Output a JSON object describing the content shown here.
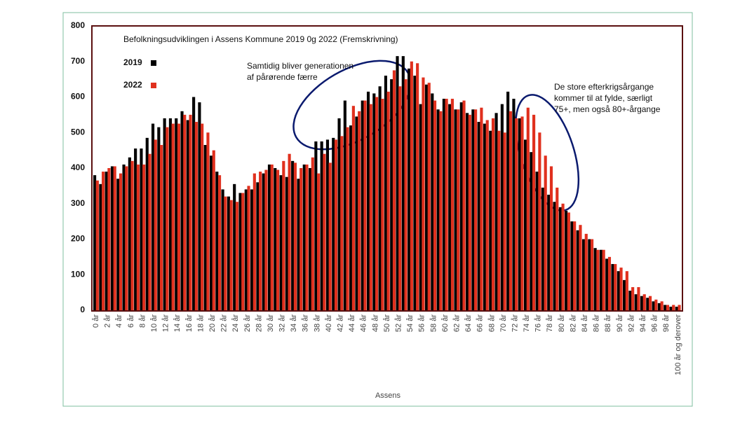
{
  "chart_data": {
    "type": "bar",
    "title": "Befolkningsudviklingen i Assens Kommune 2019 0g 2022 (Fremskrivning)",
    "xlabel": "Assens",
    "annotations": [
      [
        "Samtidig bliver generationen",
        "af pårørende færre"
      ],
      [
        "De store efterkrigsårgange",
        "kommer til at fylde, særligt",
        "75+, men også 80+-årgange"
      ]
    ],
    "categories": [
      "0 år",
      null,
      "2 år",
      null,
      "4 år",
      null,
      "6 år",
      null,
      "8 år",
      null,
      "10 år",
      null,
      "12 år",
      null,
      "14 år",
      null,
      "16 år",
      null,
      "18 år",
      null,
      "20 år",
      null,
      "22 år",
      null,
      "24 år",
      null,
      "26 år",
      null,
      "28 år",
      null,
      "30 år",
      null,
      "32 år",
      null,
      "34 år",
      null,
      "36 år",
      null,
      "38 år",
      null,
      "40 år",
      null,
      "42 år",
      null,
      "44 år",
      null,
      "46 år",
      null,
      "48 år",
      null,
      "50 år",
      null,
      "52 år",
      null,
      "54 år",
      null,
      "56 år",
      null,
      "58 år",
      null,
      "60 år",
      null,
      "62 år",
      null,
      "64 år",
      null,
      "66 år",
      null,
      "68 år",
      null,
      "70 år",
      null,
      "72 år",
      null,
      "74 år",
      null,
      "76 år",
      null,
      "78 år",
      null,
      "80 år",
      null,
      "82 år",
      null,
      "84 år",
      null,
      "86 år",
      null,
      "88 år",
      null,
      "90 år",
      null,
      "92 år",
      null,
      "94 år",
      null,
      "96 år",
      null,
      "98 år",
      null,
      "100 år og derover"
    ],
    "series": [
      {
        "name": "2019",
        "color": "#000000",
        "values": [
          380,
          355,
          390,
          405,
          370,
          410,
          430,
          455,
          455,
          485,
          525,
          515,
          540,
          540,
          540,
          560,
          535,
          600,
          585,
          465,
          435,
          390,
          340,
          320,
          355,
          330,
          340,
          340,
          360,
          385,
          410,
          400,
          380,
          375,
          420,
          370,
          410,
          400,
          475,
          475,
          480,
          485,
          540,
          590,
          520,
          545,
          590,
          615,
          610,
          630,
          660,
          650,
          715,
          715,
          680,
          660,
          580,
          635,
          610,
          565,
          595,
          580,
          565,
          585,
          555,
          565,
          530,
          525,
          505,
          555,
          580,
          615,
          595,
          540,
          480,
          445,
          390,
          345,
          325,
          305,
          290,
          280,
          250,
          225,
          200,
          200,
          175,
          170,
          145,
          130,
          110,
          85,
          55,
          45,
          40,
          35,
          25,
          20,
          15,
          10,
          10
        ]
      },
      {
        "name": "2022",
        "color": "#e0301e",
        "values": [
          365,
          390,
          400,
          405,
          385,
          405,
          420,
          410,
          410,
          440,
          480,
          465,
          515,
          525,
          525,
          550,
          550,
          530,
          525,
          500,
          450,
          380,
          320,
          310,
          305,
          330,
          350,
          385,
          390,
          395,
          410,
          395,
          420,
          440,
          415,
          400,
          410,
          430,
          385,
          440,
          415,
          480,
          490,
          515,
          575,
          560,
          590,
          580,
          600,
          595,
          615,
          675,
          630,
          650,
          700,
          695,
          655,
          640,
          590,
          560,
          595,
          595,
          565,
          590,
          550,
          565,
          570,
          535,
          540,
          505,
          500,
          560,
          540,
          545,
          570,
          550,
          500,
          435,
          405,
          345,
          300,
          275,
          250,
          240,
          215,
          200,
          170,
          170,
          150,
          130,
          120,
          110,
          65,
          65,
          45,
          40,
          30,
          25,
          15,
          15,
          15
        ]
      }
    ],
    "ylim": [
      0,
      800
    ],
    "yticks": [
      0,
      100,
      200,
      300,
      400,
      500,
      600,
      700,
      800
    ]
  }
}
